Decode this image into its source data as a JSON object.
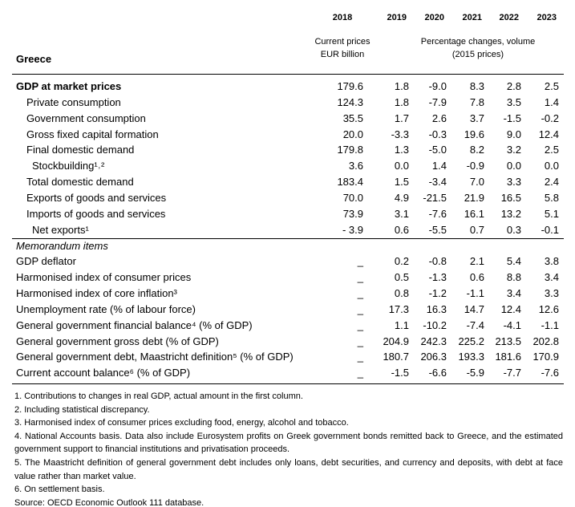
{
  "header": {
    "title": "Greece",
    "years": [
      "2018",
      "2019",
      "2020",
      "2021",
      "2022",
      "2023"
    ],
    "column_notes": [
      [
        "Current prices",
        "EUR billion"
      ],
      [
        "Percentage changes, volume",
        "(2015 prices)"
      ]
    ]
  },
  "table": {
    "sections": [
      {
        "rows": [
          {
            "label": "GDP at market prices",
            "level": 0,
            "emphasis": "bold",
            "values": [
              "179.6",
              "1.8",
              "-9.0",
              "8.3",
              "2.8",
              "2.5"
            ]
          },
          {
            "label": "Private consumption",
            "level": 1,
            "values": [
              "124.3",
              "1.8",
              "-7.9",
              "7.8",
              "3.5",
              "1.4"
            ]
          },
          {
            "label": "Government consumption",
            "level": 1,
            "values": [
              "35.5",
              "1.7",
              "2.6",
              "3.7",
              "-1.5",
              "-0.2"
            ]
          },
          {
            "label": "Gross fixed capital formation",
            "level": 1,
            "values": [
              "20.0",
              "-3.3",
              "-0.3",
              "19.6",
              "9.0",
              "12.4"
            ]
          },
          {
            "label": "Final domestic demand",
            "level": 1,
            "values": [
              "179.8",
              "1.3",
              "-5.0",
              "8.2",
              "3.2",
              "2.5"
            ]
          },
          {
            "label": "Stockbuilding¹˒²",
            "level": 2,
            "values": [
              "3.6",
              "0.0",
              "1.4",
              "-0.9",
              "0.0",
              "0.0"
            ]
          },
          {
            "label": "Total domestic demand",
            "level": 1,
            "values": [
              "183.4",
              "1.5",
              "-3.4",
              "7.0",
              "3.3",
              "2.4"
            ]
          },
          {
            "label": "Exports of goods and services",
            "level": 1,
            "values": [
              "70.0",
              "4.9",
              "-21.5",
              "21.9",
              "16.5",
              "5.8"
            ]
          },
          {
            "label": "Imports of goods and services",
            "level": 1,
            "values": [
              "73.9",
              "3.1",
              "-7.6",
              "16.1",
              "13.2",
              "5.1"
            ]
          },
          {
            "label": "Net exports¹",
            "level": 2,
            "values": [
              "- 3.9",
              "0.6",
              "-5.5",
              "0.7",
              "0.3",
              "-0.1"
            ]
          }
        ]
      },
      {
        "title": "Memorandum items",
        "rows": [
          {
            "label": "GDP deflator",
            "level": 0,
            "values": [
              "_",
              "0.2",
              "-0.8",
              "2.1",
              "5.4",
              "3.8"
            ]
          },
          {
            "label": "Harmonised index of consumer prices",
            "level": 0,
            "values": [
              "_",
              "0.5",
              "-1.3",
              "0.6",
              "8.8",
              "3.4"
            ]
          },
          {
            "label": "Harmonised index of core inflation³",
            "level": 0,
            "values": [
              "_",
              "0.8",
              "-1.2",
              "-1.1",
              "3.4",
              "3.3"
            ]
          },
          {
            "label": "Unemployment rate (% of labour force)",
            "level": 0,
            "values": [
              "_",
              "17.3",
              "16.3",
              "14.7",
              "12.4",
              "12.6"
            ]
          },
          {
            "label": "General government financial balance⁴ (% of GDP)",
            "level": 0,
            "values": [
              "_",
              "1.1",
              "-10.2",
              "-7.4",
              "-4.1",
              "-1.1"
            ]
          },
          {
            "label": "General government gross debt (% of GDP)",
            "level": 0,
            "values": [
              "_",
              "204.9",
              "242.3",
              "225.2",
              "213.5",
              "202.8"
            ]
          },
          {
            "label": "General government debt, Maastricht definition⁵ (% of GDP)",
            "level": 0,
            "values": [
              "_",
              "180.7",
              "206.3",
              "193.3",
              "181.6",
              "170.9"
            ]
          },
          {
            "label": "Current account balance⁶ (% of GDP)",
            "level": 0,
            "values": [
              "_",
              "-1.5",
              "-6.6",
              "-5.9",
              "-7.7",
              "-7.6"
            ]
          }
        ]
      }
    ]
  },
  "notes": [
    "1. Contributions to changes in real GDP, actual amount in the first column.",
    "2. Including statistical discrepancy.",
    "3. Harmonised index of consumer prices excluding food, energy, alcohol and tobacco.",
    "4. National Accounts basis. Data also include Eurosystem profits on Greek government bonds remitted back to Greece, and the estimated government support to financial institutions and privatisation proceeds.",
    "5. The Maastricht definition of general government debt includes only loans, debt securities, and currency and deposits, with debt at face value rather than market value.",
    "6. On settlement basis.",
    "Source: OECD Economic Outlook 111 database."
  ]
}
